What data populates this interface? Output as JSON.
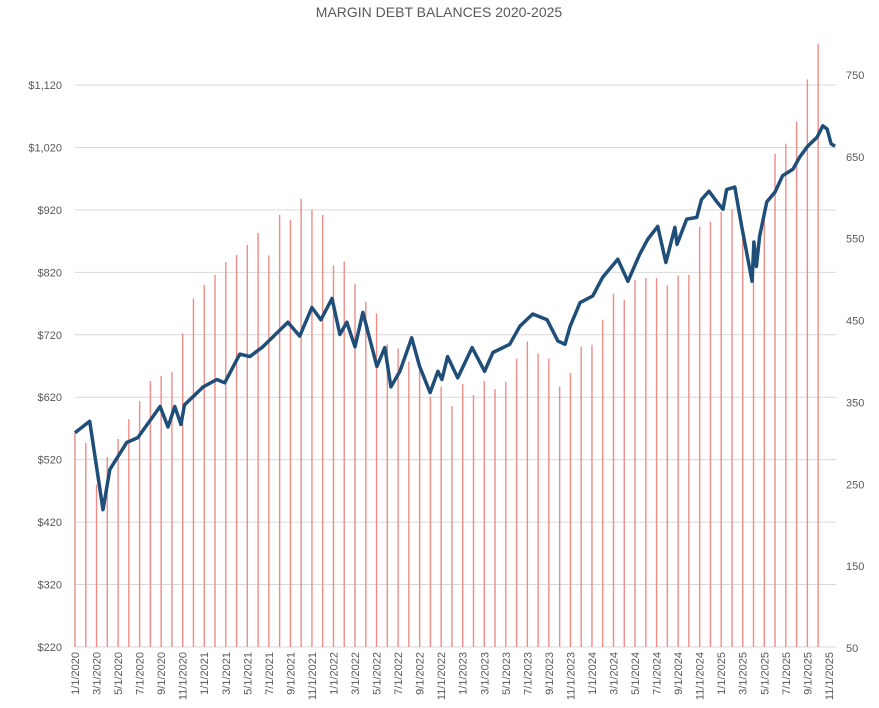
{
  "chart_data": {
    "type": "bar+line",
    "title": "MARGIN DEBT BALANCES 2020-2025",
    "grid": true,
    "left_axis": {
      "ticks": [
        "$220",
        "$320",
        "$420",
        "$520",
        "$620",
        "$720",
        "$820",
        "$920",
        "$1,020",
        "$1,120"
      ],
      "tick_values": [
        220,
        320,
        420,
        520,
        620,
        720,
        820,
        920,
        1020,
        1120
      ]
    },
    "right_axis": {
      "ticks": [
        "50",
        "150",
        "250",
        "350",
        "450",
        "550",
        "650",
        "750"
      ],
      "tick_values": [
        50,
        150,
        250,
        350,
        450,
        550,
        650,
        750
      ]
    },
    "x_ticks": [
      "1/1/2020",
      "3/1/2020",
      "5/1/2020",
      "7/1/2020",
      "9/1/2020",
      "11/1/2020",
      "1/1/2021",
      "3/1/2021",
      "5/1/2021",
      "7/1/2021",
      "9/1/2021",
      "11/1/2021",
      "1/1/2022",
      "3/1/2022",
      "5/1/2022",
      "7/1/2022",
      "9/1/2022",
      "11/1/2022",
      "1/1/2023",
      "3/1/2023",
      "5/1/2023",
      "7/1/2023",
      "9/1/2023",
      "11/1/2023",
      "1/1/2024",
      "3/1/2024",
      "5/1/2024",
      "7/1/2024",
      "9/1/2024",
      "11/1/2024",
      "1/1/2025",
      "3/1/2025",
      "5/1/2025",
      "7/1/2025",
      "9/1/2025",
      "11/1/2025"
    ],
    "bars": {
      "axis": "left",
      "color": "#ef8c88",
      "start_month": "2020-01",
      "values": [
        563,
        547,
        480,
        524,
        553,
        585,
        614,
        646,
        654,
        660,
        722,
        778,
        800,
        816,
        837,
        848,
        864,
        883,
        847,
        912,
        904,
        938,
        920,
        912,
        831,
        837,
        802,
        773,
        754,
        705,
        698,
        677,
        664,
        621,
        637,
        606,
        641,
        624,
        646,
        633,
        645,
        682,
        709,
        690,
        682,
        637,
        659,
        701,
        704,
        744,
        786,
        776,
        808,
        811,
        811,
        799,
        815,
        816,
        893,
        901,
        917,
        921,
        882,
        850,
        922,
        1010,
        1026,
        1061,
        1129,
        1186
      ]
    },
    "line": {
      "axis": "right",
      "color": "#1f4e79",
      "points": [
        [
          "2020-01-01",
          313
        ],
        [
          "2020-02-12",
          327
        ],
        [
          "2020-03-19",
          219
        ],
        [
          "2020-04-08",
          268
        ],
        [
          "2020-05-25",
          301
        ],
        [
          "2020-06-26",
          307
        ],
        [
          "2020-08-28",
          345
        ],
        [
          "2020-09-20",
          320
        ],
        [
          "2020-10-09",
          345
        ],
        [
          "2020-10-26",
          323
        ],
        [
          "2020-11-06",
          347
        ],
        [
          "2020-12-28",
          369
        ],
        [
          "2021-02-06",
          378
        ],
        [
          "2021-02-28",
          374
        ],
        [
          "2021-04-10",
          409
        ],
        [
          "2021-05-08",
          406
        ],
        [
          "2021-06-14",
          418
        ],
        [
          "2021-08-24",
          448
        ],
        [
          "2021-09-27",
          431
        ],
        [
          "2021-11-01",
          466
        ],
        [
          "2021-11-26",
          451
        ],
        [
          "2021-12-27",
          477
        ],
        [
          "2022-01-19",
          433
        ],
        [
          "2022-02-08",
          448
        ],
        [
          "2022-03-01",
          418
        ],
        [
          "2022-03-23",
          460
        ],
        [
          "2022-05-02",
          394
        ],
        [
          "2022-05-24",
          417
        ],
        [
          "2022-06-11",
          369
        ],
        [
          "2022-07-06",
          388
        ],
        [
          "2022-08-09",
          429
        ],
        [
          "2022-09-01",
          394
        ],
        [
          "2022-09-30",
          362
        ],
        [
          "2022-10-22",
          388
        ],
        [
          "2022-11-03",
          378
        ],
        [
          "2022-11-19",
          406
        ],
        [
          "2022-12-17",
          380
        ],
        [
          "2023-01-27",
          417
        ],
        [
          "2023-03-02",
          388
        ],
        [
          "2023-03-25",
          411
        ],
        [
          "2023-05-12",
          421
        ],
        [
          "2023-06-10",
          443
        ],
        [
          "2023-07-16",
          458
        ],
        [
          "2023-08-26",
          451
        ],
        [
          "2023-09-26",
          425
        ],
        [
          "2023-10-16",
          421
        ],
        [
          "2023-10-30",
          443
        ],
        [
          "2023-11-28",
          472
        ],
        [
          "2024-01-03",
          480
        ],
        [
          "2024-02-01",
          503
        ],
        [
          "2024-03-13",
          525
        ],
        [
          "2024-04-11",
          498
        ],
        [
          "2024-05-14",
          531
        ],
        [
          "2024-06-06",
          549
        ],
        [
          "2024-07-04",
          565
        ],
        [
          "2024-07-27",
          521
        ],
        [
          "2024-08-22",
          564
        ],
        [
          "2024-08-28",
          543
        ],
        [
          "2024-09-25",
          574
        ],
        [
          "2024-10-23",
          576
        ],
        [
          "2024-11-06",
          598
        ],
        [
          "2024-11-27",
          608
        ],
        [
          "2024-12-19",
          595
        ],
        [
          "2025-01-06",
          586
        ],
        [
          "2025-01-16",
          610
        ],
        [
          "2025-02-09",
          613
        ],
        [
          "2025-02-28",
          565
        ],
        [
          "2025-03-27",
          498
        ],
        [
          "2025-04-02",
          546
        ],
        [
          "2025-04-09",
          516
        ],
        [
          "2025-04-18",
          553
        ],
        [
          "2025-05-08",
          595
        ],
        [
          "2025-06-01",
          607
        ],
        [
          "2025-06-22",
          627
        ],
        [
          "2025-07-21",
          635
        ],
        [
          "2025-08-10",
          650
        ],
        [
          "2025-09-02",
          663
        ],
        [
          "2025-09-28",
          674
        ],
        [
          "2025-10-14",
          688
        ],
        [
          "2025-10-26",
          684
        ],
        [
          "2025-11-07",
          666
        ],
        [
          "2025-11-18",
          663
        ]
      ]
    }
  }
}
